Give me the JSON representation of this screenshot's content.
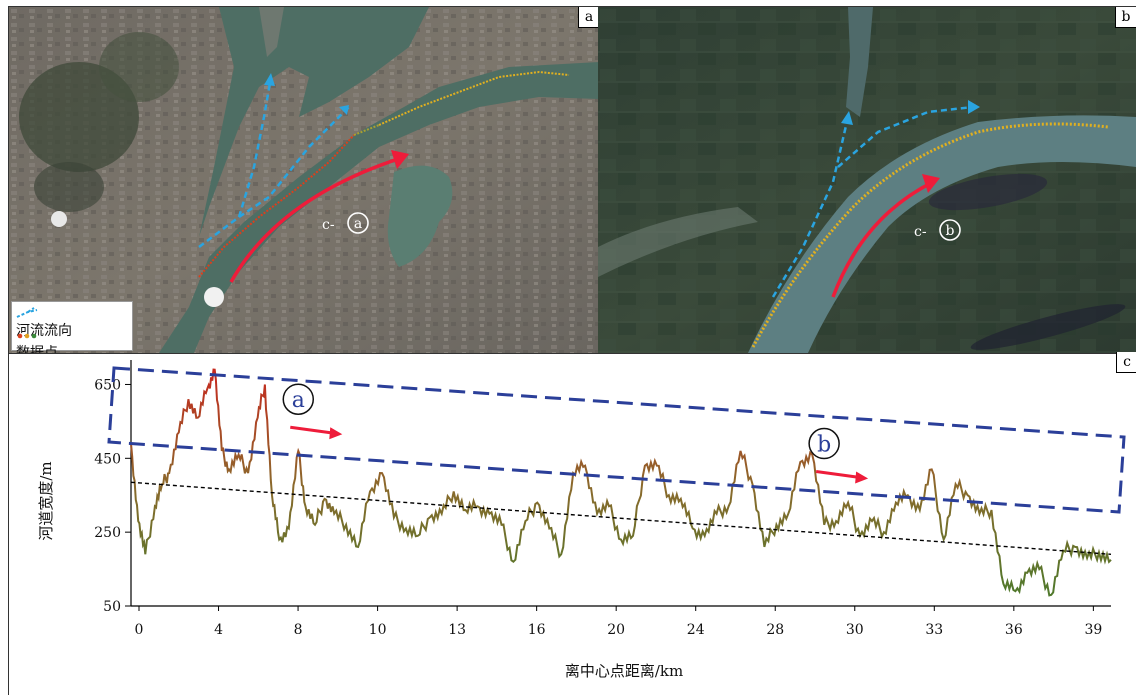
{
  "panels": {
    "a": {
      "tag": "a",
      "site_prefix": "c-",
      "site_letter": "a"
    },
    "b": {
      "tag": "b",
      "site_prefix": "c-",
      "site_letter": "b"
    },
    "c": {
      "tag": "c"
    }
  },
  "legend": {
    "flow_label": "河流流向",
    "points_label": "数据点"
  },
  "colors": {
    "flow_arrow": "#2aa4e0",
    "red_arrow": "#ee1c3a",
    "dashed_box": "#2b3f99",
    "trend_line": "#000000",
    "series_high": "#c62a1f",
    "series_mid": "#8a6a2c",
    "series_low": "#4c7a2c",
    "data_point_dots": [
      "#d9401e",
      "#e0a020",
      "#3a8a3a"
    ]
  },
  "chart_data": {
    "type": "line",
    "xlabel": "离中心点距离/km",
    "ylabel": "河道宽度/m",
    "xlim": [
      0,
      41
    ],
    "ylim": [
      50,
      700
    ],
    "x_tick_labels": [
      "0",
      "4",
      "8",
      "10",
      "13",
      "16",
      "20",
      "24",
      "28",
      "30",
      "33",
      "36",
      "39"
    ],
    "y_ticks": [
      50,
      250,
      450,
      650
    ],
    "annotations": [
      {
        "label": "a",
        "near_x": 7.5,
        "near_y": 610
      },
      {
        "label": "b",
        "near_x": 29.5,
        "near_y": 490
      }
    ],
    "trend_line": {
      "x": [
        0,
        41
      ],
      "y": [
        385,
        190
      ]
    },
    "series": [
      {
        "x": [
          0,
          0.3,
          0.6,
          1.0,
          1.3,
          1.6,
          2.0,
          2.4,
          2.8,
          3.2,
          3.5,
          3.8,
          4.1,
          4.5,
          4.9,
          5.3,
          5.6,
          5.9,
          6.2,
          6.6,
          7.0,
          7.3,
          7.7,
          8.1,
          8.5,
          9.0,
          9.5,
          10.0,
          10.5,
          11.0,
          11.5,
          12.0,
          12.5,
          13.0,
          13.5,
          14.0,
          14.5,
          15.0,
          15.5,
          16.0,
          16.5,
          17.0,
          17.5,
          18.0,
          18.5,
          19.0,
          19.5,
          20.0,
          20.5,
          21.0,
          21.5,
          22.0,
          22.5,
          23.0,
          23.5,
          24.0,
          24.5,
          25.0,
          25.5,
          26.0,
          26.5,
          27.0,
          27.5,
          28.0,
          28.5,
          29.0,
          29.5,
          30.0,
          30.5,
          31.0,
          31.5,
          32.0,
          32.5,
          33.0,
          33.5,
          34.0,
          34.5,
          35.0,
          35.5,
          36.0,
          36.5,
          37.0,
          37.5,
          38.0,
          38.5,
          39.0,
          39.5,
          40.0,
          40.5,
          41.0
        ],
        "values": [
          490,
          280,
          190,
          320,
          380,
          410,
          520,
          610,
          560,
          640,
          690,
          470,
          420,
          460,
          410,
          560,
          650,
          350,
          230,
          260,
          470,
          320,
          270,
          340,
          300,
          270,
          210,
          360,
          410,
          290,
          260,
          240,
          290,
          300,
          360,
          310,
          320,
          300,
          270,
          170,
          280,
          330,
          260,
          190,
          410,
          430,
          300,
          320,
          230,
          240,
          430,
          430,
          350,
          340,
          260,
          240,
          300,
          320,
          470,
          380,
          210,
          270,
          300,
          440,
          460,
          270,
          280,
          330,
          240,
          280,
          250,
          330,
          350,
          310,
          420,
          230,
          380,
          350,
          300,
          310,
          110,
          90,
          140,
          150,
          80,
          200,
          210,
          180,
          195,
          175
        ]
      }
    ]
  }
}
